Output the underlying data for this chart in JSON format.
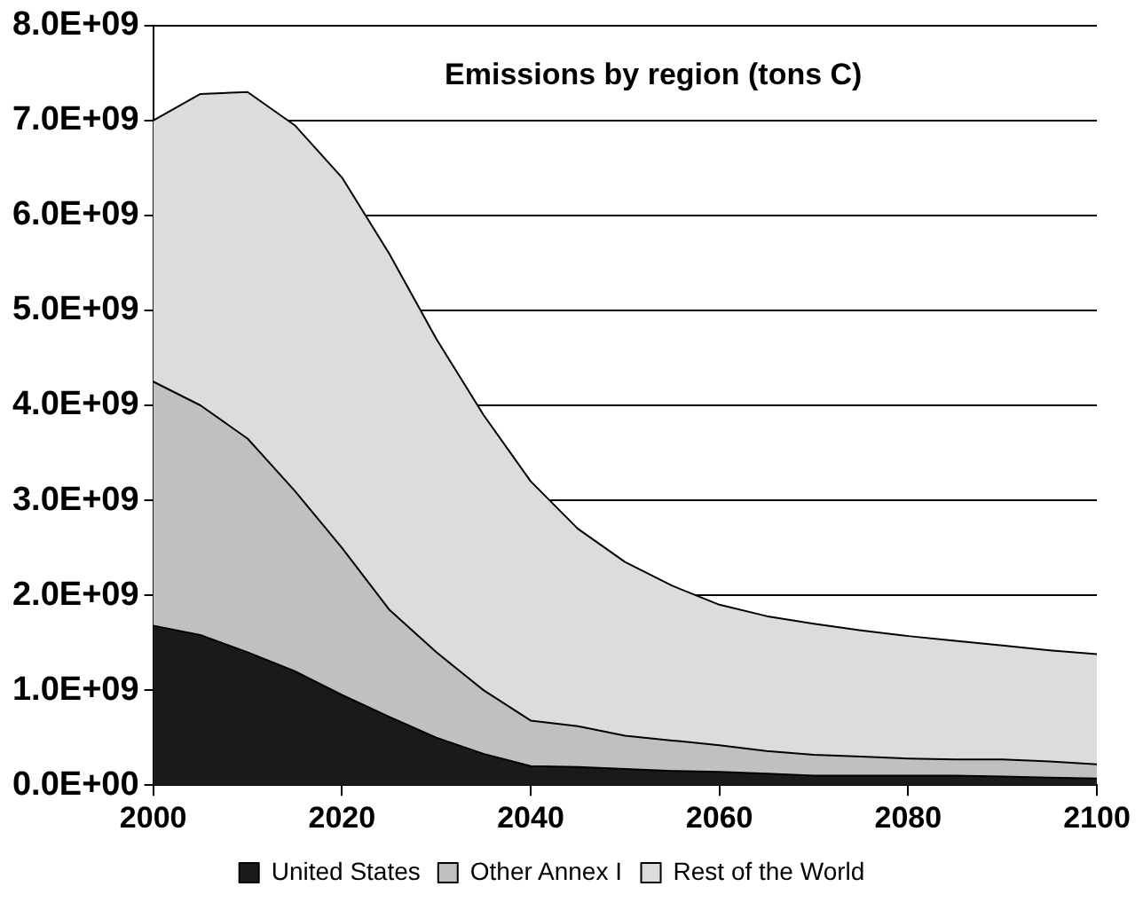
{
  "chart_data": {
    "type": "area",
    "title": "Emissions by region (tons C)",
    "stacked": true,
    "x": [
      2000,
      2005,
      2010,
      2015,
      2020,
      2025,
      2030,
      2035,
      2040,
      2045,
      2050,
      2055,
      2060,
      2065,
      2070,
      2075,
      2080,
      2085,
      2090,
      2095,
      2100
    ],
    "series": [
      {
        "name": "United States",
        "color": "#1a1a1a",
        "values": [
          1680000000.0,
          1580000000.0,
          1400000000.0,
          1200000000.0,
          950000000.0,
          720000000.0,
          500000000.0,
          330000000.0,
          200000000.0,
          190000000.0,
          170000000.0,
          150000000.0,
          140000000.0,
          120000000.0,
          100000000.0,
          100000000.0,
          100000000.0,
          100000000.0,
          90000000.0,
          80000000.0,
          70000000.0
        ]
      },
      {
        "name": "Other Annex I",
        "color": "#c0c0c0",
        "values": [
          2570000000.0,
          2420000000.0,
          2250000000.0,
          1900000000.0,
          1550000000.0,
          1130000000.0,
          900000000.0,
          670000000.0,
          480000000.0,
          430000000.0,
          350000000.0,
          320000000.0,
          280000000.0,
          240000000.0,
          220000000.0,
          200000000.0,
          180000000.0,
          170000000.0,
          180000000.0,
          170000000.0,
          150000000.0
        ]
      },
      {
        "name": "Rest of the World",
        "color": "#dcdcdc",
        "values": [
          2750000000.0,
          3280000000.0,
          3650000000.0,
          3850000000.0,
          3900000000.0,
          3750000000.0,
          3300000000.0,
          2900000000.0,
          2520000000.0,
          2080000000.0,
          1830000000.0,
          1630000000.0,
          1480000000.0,
          1420000000.0,
          1380000000.0,
          1330000000.0,
          1290000000.0,
          1250000000.0,
          1200000000.0,
          1170000000.0,
          1160000000.0
        ]
      }
    ],
    "xlim": [
      2000,
      2100
    ],
    "xticks": [
      2000,
      2020,
      2040,
      2060,
      2080,
      2100
    ],
    "ylim": [
      0,
      8000000000.0
    ],
    "yticks": [
      {
        "value": 0,
        "label": "0.0E+00"
      },
      {
        "value": 1000000000.0,
        "label": "1.0E+09"
      },
      {
        "value": 2000000000.0,
        "label": "2.0E+09"
      },
      {
        "value": 3000000000.0,
        "label": "3.0E+09"
      },
      {
        "value": 4000000000.0,
        "label": "4.0E+09"
      },
      {
        "value": 5000000000.0,
        "label": "5.0E+09"
      },
      {
        "value": 6000000000.0,
        "label": "6.0E+09"
      },
      {
        "value": 7000000000.0,
        "label": "7.0E+09"
      },
      {
        "value": 8000000000.0,
        "label": "8.0E+09"
      }
    ],
    "grid": "y",
    "legend": "bottom",
    "marker": "none",
    "line_style": "solid"
  }
}
